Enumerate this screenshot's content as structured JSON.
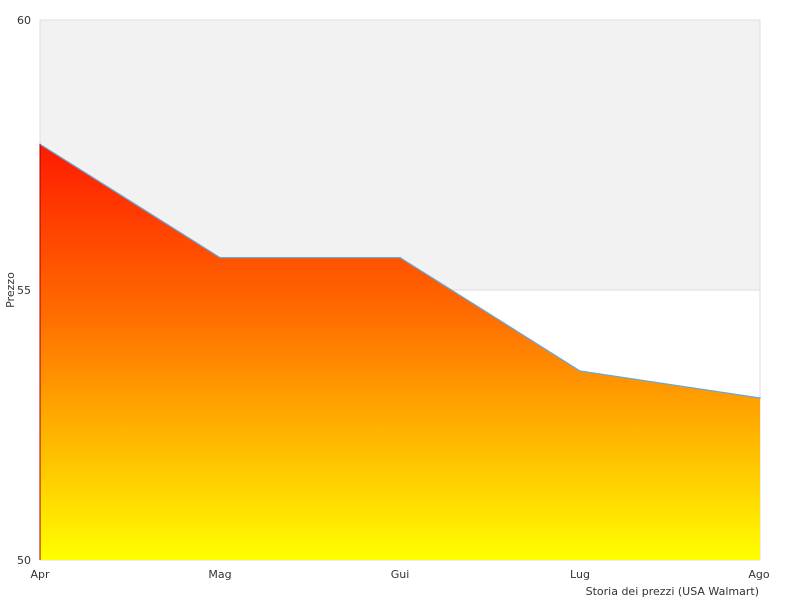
{
  "chart_data": {
    "type": "area",
    "categories": [
      "Apr",
      "Mag",
      "Gui",
      "Lug",
      "Ago"
    ],
    "series": [
      {
        "values": [
          57.7,
          55.6,
          55.6,
          53.5,
          53.0
        ]
      }
    ],
    "ylabel": "Prezzo",
    "xlabel": "Storia dei prezzi (USA Walmart)",
    "ylim": [
      50,
      60
    ],
    "yticks": [
      50,
      55,
      60
    ],
    "colors": {
      "gradient_top": "#ff1a00",
      "gradient_mid": "#ff6a00",
      "gradient_bottom": "#ffff00",
      "line": "#6aa6d8",
      "band_upper": "#f2f2f2",
      "band_lower": "#ffffff",
      "border": "#dddddd"
    },
    "grid": true,
    "legend": "none"
  }
}
